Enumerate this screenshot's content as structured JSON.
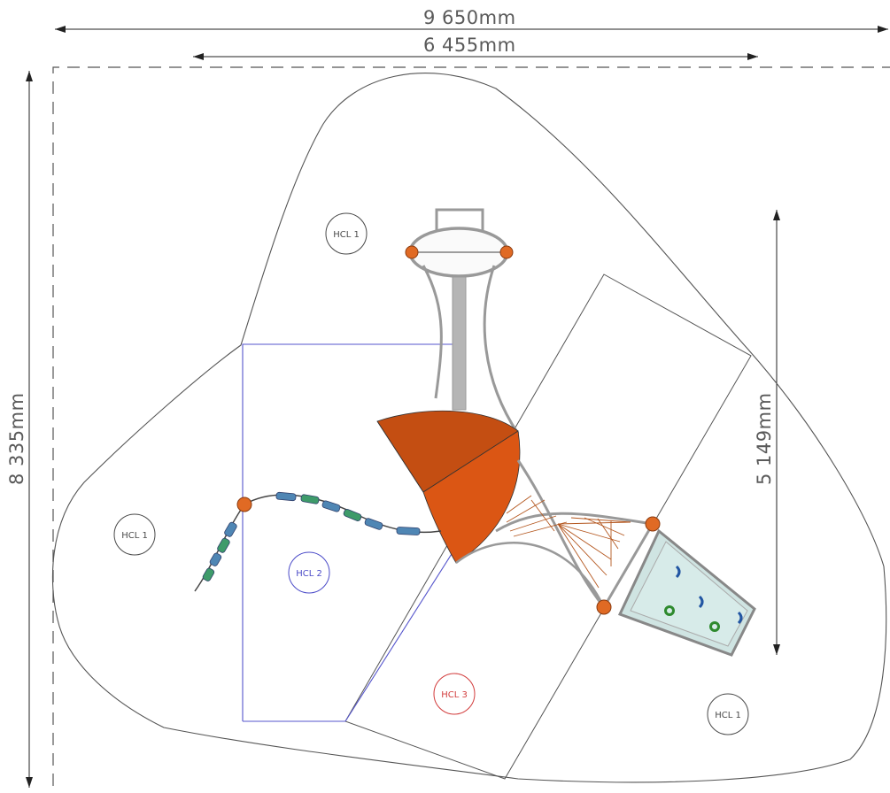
{
  "dimensions": {
    "overall_width": "9 650mm",
    "structure_width": "6 455mm",
    "overall_depth": "8 335mm",
    "structure_depth": "5 149mm"
  },
  "zones": [
    {
      "id": "top",
      "label": "HCL 1",
      "color": "#4a4a4a"
    },
    {
      "id": "left",
      "label": "HCL 1",
      "color": "#4a4a4a"
    },
    {
      "id": "mid",
      "label": "HCL 2",
      "color": "#4b4bc8"
    },
    {
      "id": "bottom",
      "label": "HCL 3",
      "color": "#d23c3c"
    },
    {
      "id": "right",
      "label": "HCL 1",
      "color": "#4a4a4a"
    }
  ],
  "colors": {
    "outline": "#555555",
    "blue_zone": "#5555cc",
    "orange": "#d5540f",
    "steel": "#9a9a9a",
    "climbing_wall": "#cfe4e2"
  }
}
